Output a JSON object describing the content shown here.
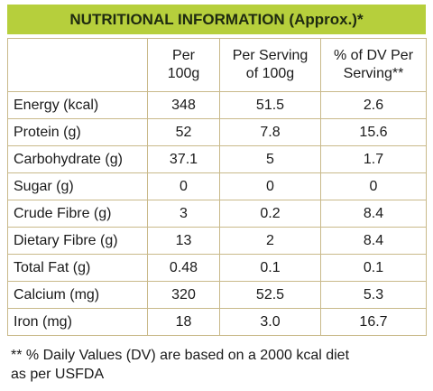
{
  "title": "NUTRITIONAL INFORMATION (Approx.)*",
  "table": {
    "header": [
      [
        "Per",
        "100g"
      ],
      [
        "Per Serving",
        "of 100g"
      ],
      [
        "% of DV Per",
        "Serving**"
      ]
    ],
    "rows": [
      [
        "Energy (kcal)",
        "348",
        "51.5",
        "2.6"
      ],
      [
        "Protein (g)",
        "52",
        "7.8",
        "15.6"
      ],
      [
        "Carbohydrate (g)",
        "37.1",
        "5",
        "1.7"
      ],
      [
        "Sugar (g)",
        "0",
        "0",
        "0"
      ],
      [
        "Crude Fibre (g)",
        "3",
        "0.2",
        "8.4"
      ],
      [
        "Dietary Fibre (g)",
        "13",
        "2",
        "8.4"
      ],
      [
        "Total Fat (g)",
        "0.48",
        "0.1",
        "0.1"
      ],
      [
        "Calcium (mg)",
        "320",
        "52.5",
        "5.3"
      ],
      [
        "Iron (mg)",
        "18",
        "3.0",
        "16.7"
      ]
    ]
  },
  "footnote": [
    "** % Daily Values (DV) are based on a 2000 kcal diet",
    "as per USFDA"
  ]
}
